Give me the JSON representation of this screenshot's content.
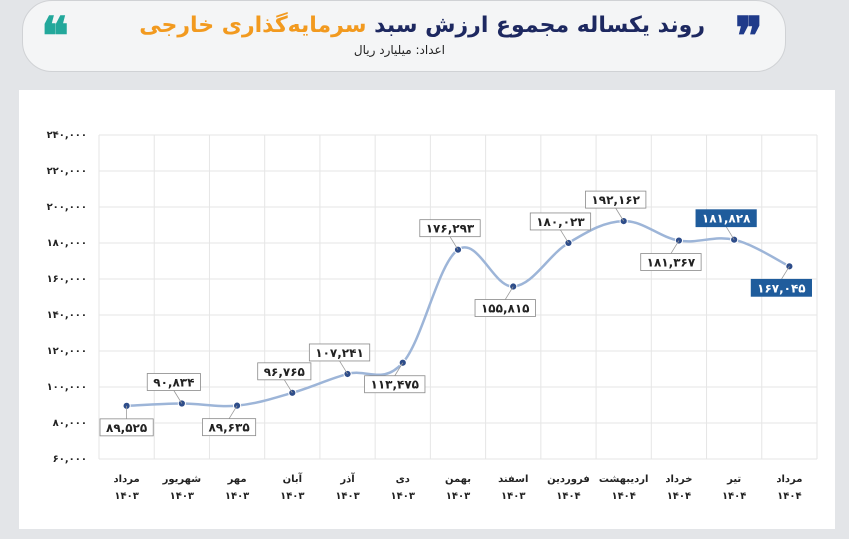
{
  "header": {
    "title_main": "روند یکساله مجموع ارزش سبد ",
    "title_highlight": "سرمایه‌گذاری خارجی",
    "subtitle": "اعداد: میلیارد ریال",
    "quote_left": "❝",
    "quote_right": "❞"
  },
  "colors": {
    "line": "#9db5d8",
    "point": "#2e4d8a",
    "highlight_bg": "#1f5c9c",
    "accent": "#f29a1f",
    "grid": "#e6e6e6"
  },
  "chart_data": {
    "type": "line",
    "ylim": [
      60000,
      240000
    ],
    "yticks": [
      "۶۰,۰۰۰",
      "۸۰,۰۰۰",
      "۱۰۰,۰۰۰",
      "۱۲۰,۰۰۰",
      "۱۴۰,۰۰۰",
      "۱۶۰,۰۰۰",
      "۱۸۰,۰۰۰",
      "۲۰۰,۰۰۰",
      "۲۲۰,۰۰۰",
      "۲۴۰,۰۰۰"
    ],
    "yticks_values": [
      60000,
      80000,
      100000,
      120000,
      140000,
      160000,
      180000,
      200000,
      220000,
      240000
    ],
    "categories": [
      {
        "month": "مرداد",
        "year": "۱۴۰۳"
      },
      {
        "month": "شهریور",
        "year": "۱۴۰۳"
      },
      {
        "month": "مهر",
        "year": "۱۴۰۳"
      },
      {
        "month": "آبان",
        "year": "۱۴۰۳"
      },
      {
        "month": "آذر",
        "year": "۱۴۰۳"
      },
      {
        "month": "دی",
        "year": "۱۴۰۳"
      },
      {
        "month": "بهمن",
        "year": "۱۴۰۳"
      },
      {
        "month": "اسفند",
        "year": "۱۴۰۳"
      },
      {
        "month": "فروردین",
        "year": "۱۴۰۴"
      },
      {
        "month": "اردیبهشت",
        "year": "۱۴۰۴"
      },
      {
        "month": "خرداد",
        "year": "۱۴۰۴"
      },
      {
        "month": "تیر",
        "year": "۱۴۰۴"
      },
      {
        "month": "مرداد",
        "year": "۱۴۰۴"
      }
    ],
    "values": [
      89525,
      90834,
      89635,
      96765,
      107241,
      113475,
      176293,
      155815,
      180023,
      192162,
      181367,
      181828,
      167045
    ],
    "labels": [
      "۸۹,۵۲۵",
      "۹۰,۸۳۴",
      "۸۹,۶۳۵",
      "۹۶,۷۶۵",
      "۱۰۷,۲۴۱",
      "۱۱۳,۴۷۵",
      "۱۷۶,۲۹۳",
      "۱۵۵,۸۱۵",
      "۱۸۰,۰۲۳",
      "۱۹۲,۱۶۲",
      "۱۸۱,۳۶۷",
      "۱۸۱,۸۲۸",
      "۱۶۷,۰۴۵"
    ],
    "label_position": [
      "below",
      "above",
      "below",
      "above",
      "above",
      "below",
      "above",
      "below",
      "above",
      "above",
      "below",
      "above",
      "below"
    ],
    "highlighted": [
      false,
      false,
      false,
      false,
      false,
      false,
      false,
      false,
      false,
      false,
      false,
      true,
      true
    ],
    "grid": true
  }
}
